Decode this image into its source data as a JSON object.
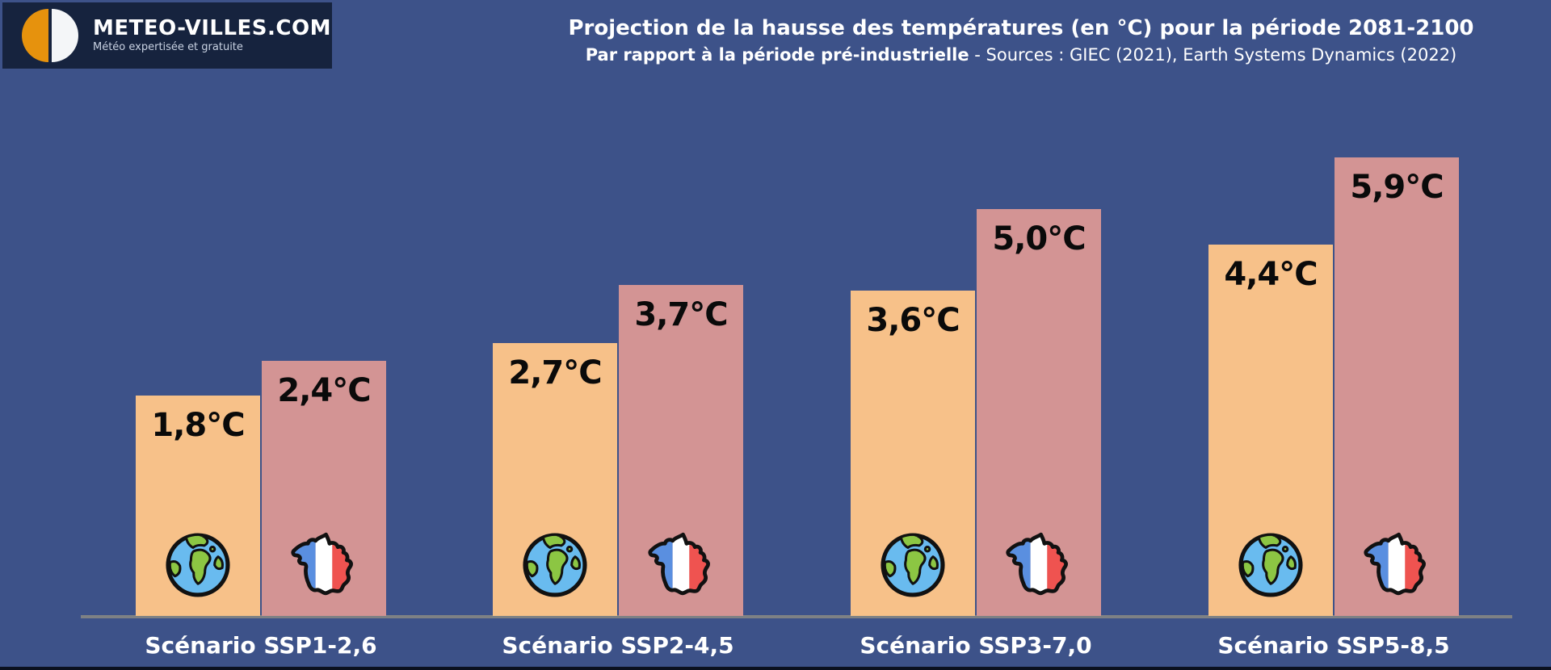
{
  "logo": {
    "brand": "METEO-VILLES.COM",
    "tagline": "Météo expertisée et gratuite"
  },
  "header": {
    "title": "Projection de la hausse des températures (en °C) pour la période 2081-2100",
    "subtitle_bold": "Par rapport à la période pré-industrielle",
    "subtitle_rest": " - Sources : GIEC (2021), Earth Systems Dynamics (2022)"
  },
  "colors": {
    "background": "#3D5289",
    "logo_background": "#16233E",
    "logo_orange": "#E6920D",
    "world_bar": "#F7C189",
    "france_bar": "#D39494",
    "axis_line": "#7E8184",
    "value_text": "#0A0A0A",
    "label_text": "#FFFFFF"
  },
  "chart_data": {
    "type": "bar",
    "title": "Projection de la hausse des températures (en °C) pour la période 2081-2100",
    "subtitle": "Par rapport à la période pré-industrielle - Sources : GIEC (2021), Earth Systems Dynamics (2022)",
    "xlabel": "",
    "ylabel": "Hausse des températures (°C) par rapport à la période pré-industrielle",
    "grid": false,
    "legend": "icons-on-bars (globe = monde, carte = France)",
    "categories": [
      "Scénario SSP1-2,6",
      "Scénario SSP2-4,5",
      "Scénario SSP3-7,0",
      "Scénario SSP5-8,5"
    ],
    "series": [
      {
        "icon": "globe-icon",
        "color": "#F7C189",
        "values": [
          1.8,
          2.7,
          3.6,
          4.4
        ],
        "labels": [
          "1,8°C",
          "2,7°C",
          "3,6°C",
          "4,4°C"
        ]
      },
      {
        "icon": "france-map-icon",
        "color": "#D39494",
        "values": [
          2.4,
          3.7,
          5.0,
          5.9
        ],
        "labels": [
          "2,4°C",
          "3,7°C",
          "5,0°C",
          "5,9°C"
        ]
      }
    ]
  }
}
